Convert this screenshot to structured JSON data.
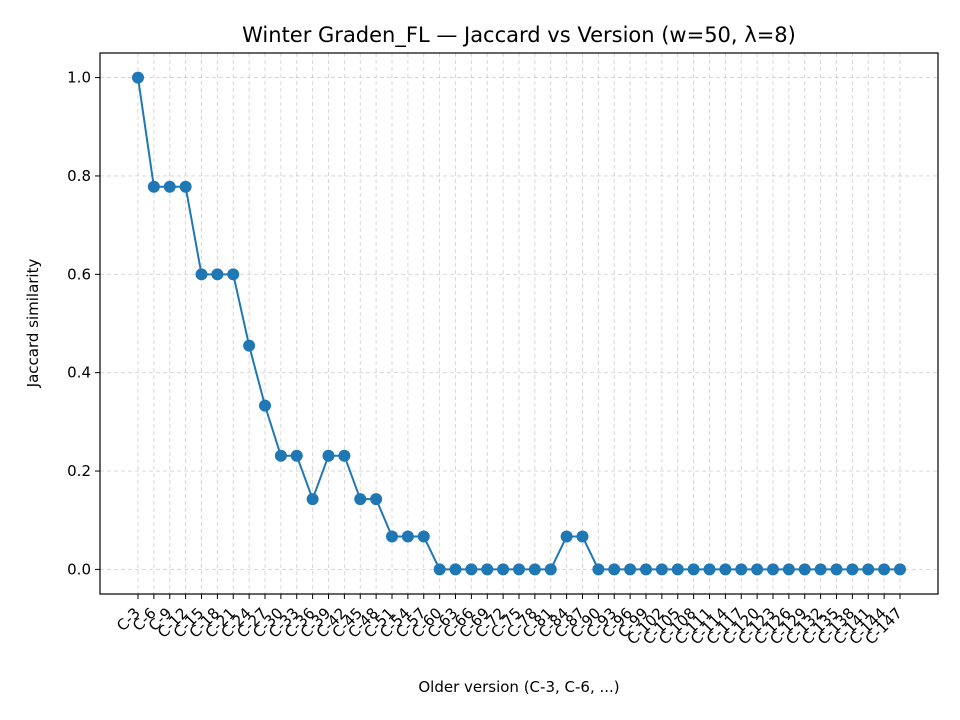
{
  "chart_data": {
    "type": "line",
    "title": "Winter Graden_FL — Jaccard vs Version (w=50, λ=8)",
    "xlabel": "Older version (C-3, C-6, ...)",
    "ylabel": "Jaccard similarity",
    "ylim": [
      -0.05,
      1.05
    ],
    "yticks": [
      "0.0",
      "0.2",
      "0.4",
      "0.6",
      "0.8",
      "1.0"
    ],
    "grid": true,
    "line_color": "#1f77b4",
    "categories": [
      "C-3",
      "C-6",
      "C-9",
      "C-12",
      "C-15",
      "C-18",
      "C-21",
      "C-24",
      "C-27",
      "C-30",
      "C-33",
      "C-36",
      "C-39",
      "C-42",
      "C-45",
      "C-48",
      "C-51",
      "C-54",
      "C-57",
      "C-60",
      "C-63",
      "C-66",
      "C-69",
      "C-72",
      "C-75",
      "C-78",
      "C-81",
      "C-84",
      "C-87",
      "C-90",
      "C-93",
      "C-96",
      "C-99",
      "C-102",
      "C-105",
      "C-108",
      "C-111",
      "C-114",
      "C-117",
      "C-120",
      "C-123",
      "C-126",
      "C-129",
      "C-132",
      "C-135",
      "C-138",
      "C-141",
      "C-144",
      "C-147"
    ],
    "values": [
      1.0,
      0.778,
      0.778,
      0.778,
      0.6,
      0.6,
      0.6,
      0.455,
      0.333,
      0.231,
      0.231,
      0.143,
      0.231,
      0.231,
      0.143,
      0.143,
      0.067,
      0.067,
      0.067,
      0.0,
      0.0,
      0.0,
      0.0,
      0.0,
      0.0,
      0.0,
      0.0,
      0.067,
      0.067,
      0.0,
      0.0,
      0.0,
      0.0,
      0.0,
      0.0,
      0.0,
      0.0,
      0.0,
      0.0,
      0.0,
      0.0,
      0.0,
      0.0,
      0.0,
      0.0,
      0.0,
      0.0,
      0.0,
      0.0
    ]
  }
}
